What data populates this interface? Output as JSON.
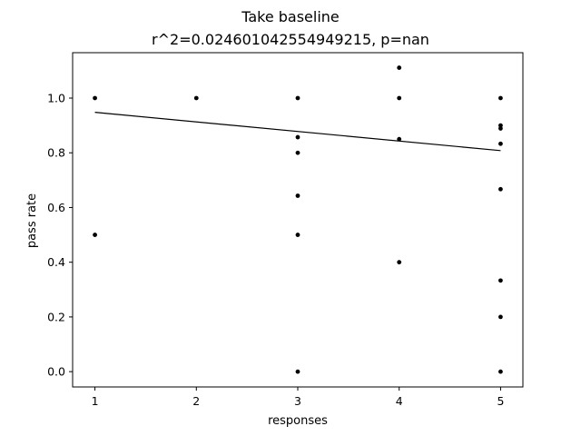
{
  "chart_data": {
    "type": "scatter",
    "title": "Take baseline",
    "subtitle": "r^2=0.024601042554949215, p=nan",
    "xlabel": "responses",
    "ylabel": "pass rate",
    "xlim": [
      0.78,
      5.22
    ],
    "ylim": [
      -0.056,
      1.166
    ],
    "xticks": [
      "1",
      "2",
      "3",
      "4",
      "5"
    ],
    "xtick_values": [
      1,
      2,
      3,
      4,
      5
    ],
    "yticks": [
      "0.0",
      "0.2",
      "0.4",
      "0.6",
      "0.8",
      "1.0"
    ],
    "ytick_values": [
      0.0,
      0.2,
      0.4,
      0.6,
      0.8,
      1.0
    ],
    "grid": false,
    "points": [
      {
        "x": 1,
        "y": 1.0
      },
      {
        "x": 1,
        "y": 0.5
      },
      {
        "x": 2,
        "y": 1.0
      },
      {
        "x": 3,
        "y": 1.0
      },
      {
        "x": 3,
        "y": 0.857
      },
      {
        "x": 3,
        "y": 0.8
      },
      {
        "x": 3,
        "y": 0.643
      },
      {
        "x": 3,
        "y": 0.5
      },
      {
        "x": 3,
        "y": 0.0
      },
      {
        "x": 4,
        "y": 1.111
      },
      {
        "x": 4,
        "y": 1.0
      },
      {
        "x": 4,
        "y": 0.85
      },
      {
        "x": 4,
        "y": 0.4
      },
      {
        "x": 5,
        "y": 1.0
      },
      {
        "x": 5,
        "y": 0.9
      },
      {
        "x": 5,
        "y": 0.889
      },
      {
        "x": 5,
        "y": 0.833
      },
      {
        "x": 5,
        "y": 0.667
      },
      {
        "x": 5,
        "y": 0.333
      },
      {
        "x": 5,
        "y": 0.2
      },
      {
        "x": 5,
        "y": 0.0
      }
    ],
    "fit_line": {
      "x": [
        1,
        5
      ],
      "y": [
        0.948,
        0.808
      ]
    },
    "colors": {
      "points": "#000000",
      "line": "#000000",
      "axes": "#000000"
    }
  }
}
